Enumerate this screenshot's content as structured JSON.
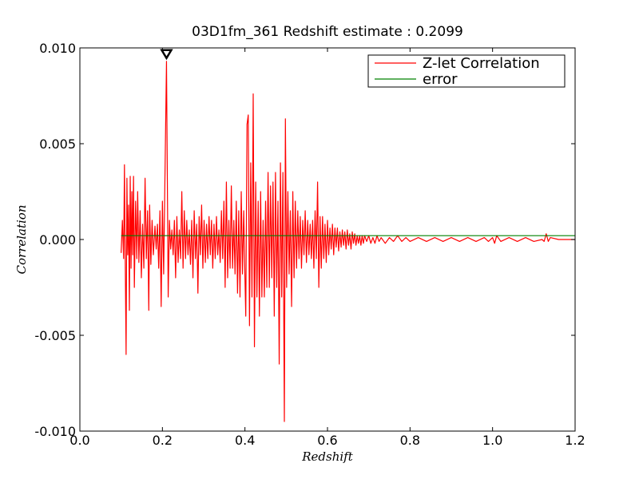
{
  "chart_data": {
    "type": "line",
    "title": "03D1fm_361 Redshift estimate : 0.2099",
    "xlabel": "Redshift",
    "ylabel": "Correlation",
    "xlim": [
      0.0,
      1.2
    ],
    "ylim": [
      -0.01,
      0.01
    ],
    "x_ticks": [
      0.0,
      0.2,
      0.4,
      0.6,
      0.8,
      1.0,
      1.2
    ],
    "x_tick_labels": [
      "0.0",
      "0.2",
      "0.4",
      "0.6",
      "0.8",
      "1.0",
      "1.2"
    ],
    "y_ticks": [
      0.01,
      0.005,
      0.0,
      -0.005,
      -0.01
    ],
    "y_tick_labels": [
      "0.010",
      "0.005",
      "0.000",
      "-0.005",
      "-0.010"
    ],
    "grid": false,
    "legend_position": "top-right",
    "marker": {
      "x": 0.2099,
      "y": 0.0093,
      "shape": "down-triangle"
    },
    "series": [
      {
        "name": "Z-let Correlation",
        "color": "#ff0000",
        "points": [
          [
            0.1,
            -0.0007
          ],
          [
            0.103,
            0.001
          ],
          [
            0.106,
            -0.001
          ],
          [
            0.108,
            0.0039
          ],
          [
            0.11,
            -0.0012
          ],
          [
            0.112,
            -0.006
          ],
          [
            0.114,
            0.0032
          ],
          [
            0.116,
            -0.0008
          ],
          [
            0.118,
            0.0018
          ],
          [
            0.12,
            -0.0037
          ],
          [
            0.122,
            0.0033
          ],
          [
            0.124,
            -0.0015
          ],
          [
            0.126,
            0.0025
          ],
          [
            0.128,
            -0.0008
          ],
          [
            0.13,
            0.0033
          ],
          [
            0.132,
            -0.0025
          ],
          [
            0.135,
            0.002
          ],
          [
            0.138,
            -0.001
          ],
          [
            0.14,
            0.0025
          ],
          [
            0.143,
            -0.0012
          ],
          [
            0.146,
            0.0015
          ],
          [
            0.149,
            -0.002
          ],
          [
            0.152,
            0.0008
          ],
          [
            0.155,
            -0.0015
          ],
          [
            0.158,
            0.0032
          ],
          [
            0.161,
            -0.001
          ],
          [
            0.164,
            0.0015
          ],
          [
            0.167,
            -0.0037
          ],
          [
            0.169,
            0.0018
          ],
          [
            0.172,
            -0.0013
          ],
          [
            0.175,
            0.001
          ],
          [
            0.178,
            -0.0008
          ],
          [
            0.182,
            0.0007
          ],
          [
            0.185,
            -0.0005
          ],
          [
            0.188,
            0.0008
          ],
          [
            0.191,
            -0.0015
          ],
          [
            0.194,
            0.0015
          ],
          [
            0.197,
            -0.0035
          ],
          [
            0.2,
            0.002
          ],
          [
            0.203,
            -0.0018
          ],
          [
            0.206,
            0.003
          ],
          [
            0.2099,
            0.0093
          ],
          [
            0.212,
            0.003
          ],
          [
            0.214,
            -0.003
          ],
          [
            0.217,
            0.001
          ],
          [
            0.22,
            -0.0005
          ],
          [
            0.223,
            0.0005
          ],
          [
            0.226,
            -0.0008
          ],
          [
            0.229,
            0.001
          ],
          [
            0.232,
            -0.002
          ],
          [
            0.235,
            0.0012
          ],
          [
            0.238,
            -0.0012
          ],
          [
            0.241,
            0.0005
          ],
          [
            0.244,
            -0.001
          ],
          [
            0.247,
            0.0025
          ],
          [
            0.25,
            -0.0015
          ],
          [
            0.253,
            0.0015
          ],
          [
            0.256,
            -0.001
          ],
          [
            0.259,
            0.001
          ],
          [
            0.262,
            -0.0008
          ],
          [
            0.265,
            0.0005
          ],
          [
            0.268,
            -0.0013
          ],
          [
            0.271,
            0.001
          ],
          [
            0.274,
            -0.002
          ],
          [
            0.277,
            0.0015
          ],
          [
            0.28,
            -0.001
          ],
          [
            0.283,
            0.0008
          ],
          [
            0.286,
            -0.0028
          ],
          [
            0.289,
            0.0012
          ],
          [
            0.292,
            -0.0008
          ],
          [
            0.295,
            0.0018
          ],
          [
            0.298,
            -0.0015
          ],
          [
            0.301,
            0.001
          ],
          [
            0.304,
            -0.0012
          ],
          [
            0.307,
            0.0008
          ],
          [
            0.31,
            -0.001
          ],
          [
            0.313,
            0.0012
          ],
          [
            0.316,
            -0.0008
          ],
          [
            0.319,
            0.001
          ],
          [
            0.322,
            -0.0015
          ],
          [
            0.325,
            0.0008
          ],
          [
            0.328,
            -0.001
          ],
          [
            0.331,
            0.0012
          ],
          [
            0.334,
            -0.0008
          ],
          [
            0.337,
            0.0005
          ],
          [
            0.34,
            -0.0012
          ],
          [
            0.343,
            0.0015
          ],
          [
            0.346,
            -0.001
          ],
          [
            0.349,
            0.002
          ],
          [
            0.352,
            -0.0025
          ],
          [
            0.355,
            0.003
          ],
          [
            0.358,
            -0.002
          ],
          [
            0.361,
            0.001
          ],
          [
            0.364,
            -0.0015
          ],
          [
            0.367,
            0.0028
          ],
          [
            0.37,
            -0.0015
          ],
          [
            0.373,
            0.001
          ],
          [
            0.376,
            -0.0018
          ],
          [
            0.379,
            0.002
          ],
          [
            0.382,
            -0.0028
          ],
          [
            0.385,
            0.0015
          ],
          [
            0.388,
            -0.003
          ],
          [
            0.391,
            0.0025
          ],
          [
            0.394,
            -0.0018
          ],
          [
            0.397,
            0.0015
          ],
          [
            0.4,
            -0.002
          ],
          [
            0.402,
            -0.004
          ],
          [
            0.405,
            0.006
          ],
          [
            0.408,
            0.0065
          ],
          [
            0.411,
            -0.0045
          ],
          [
            0.414,
            0.004
          ],
          [
            0.417,
            -0.003
          ],
          [
            0.42,
            0.0076
          ],
          [
            0.423,
            -0.0056
          ],
          [
            0.426,
            0.003
          ],
          [
            0.429,
            -0.003
          ],
          [
            0.432,
            0.002
          ],
          [
            0.435,
            -0.004
          ],
          [
            0.438,
            0.0025
          ],
          [
            0.441,
            -0.003
          ],
          [
            0.444,
            0.001
          ],
          [
            0.447,
            -0.003
          ],
          [
            0.45,
            0.002
          ],
          [
            0.453,
            -0.0025
          ],
          [
            0.456,
            0.0035
          ],
          [
            0.459,
            -0.0025
          ],
          [
            0.462,
            0.0028
          ],
          [
            0.465,
            -0.002
          ],
          [
            0.468,
            0.003
          ],
          [
            0.471,
            -0.004
          ],
          [
            0.474,
            0.0035
          ],
          [
            0.477,
            -0.0025
          ],
          [
            0.48,
            0.002
          ],
          [
            0.483,
            -0.0065
          ],
          [
            0.486,
            0.004
          ],
          [
            0.489,
            -0.003
          ],
          [
            0.492,
            0.0035
          ],
          [
            0.4955,
            -0.0095
          ],
          [
            0.498,
            0.0063
          ],
          [
            0.501,
            -0.0025
          ],
          [
            0.504,
            0.0025
          ],
          [
            0.507,
            -0.0018
          ],
          [
            0.51,
            0.0015
          ],
          [
            0.513,
            -0.0035
          ],
          [
            0.516,
            0.0025
          ],
          [
            0.519,
            -0.002
          ],
          [
            0.522,
            0.002
          ],
          [
            0.525,
            -0.0015
          ],
          [
            0.528,
            0.0015
          ],
          [
            0.531,
            -0.001
          ],
          [
            0.534,
            0.0012
          ],
          [
            0.537,
            -0.0015
          ],
          [
            0.54,
            0.001
          ],
          [
            0.543,
            -0.0008
          ],
          [
            0.546,
            0.0015
          ],
          [
            0.549,
            -0.0012
          ],
          [
            0.552,
            0.001
          ],
          [
            0.555,
            -0.0008
          ],
          [
            0.558,
            0.0008
          ],
          [
            0.561,
            -0.001
          ],
          [
            0.564,
            0.001
          ],
          [
            0.567,
            -0.0015
          ],
          [
            0.57,
            0.0015
          ],
          [
            0.573,
            -0.001
          ],
          [
            0.576,
            0.003
          ],
          [
            0.579,
            -0.0025
          ],
          [
            0.582,
            0.0012
          ],
          [
            0.585,
            -0.0015
          ],
          [
            0.588,
            0.0012
          ],
          [
            0.591,
            -0.001
          ],
          [
            0.594,
            0.0008
          ],
          [
            0.597,
            -0.0012
          ],
          [
            0.6,
            0.001
          ],
          [
            0.603,
            -0.0008
          ],
          [
            0.606,
            0.0006
          ],
          [
            0.609,
            -0.0005
          ],
          [
            0.612,
            0.0008
          ],
          [
            0.615,
            -0.0008
          ],
          [
            0.618,
            0.0006
          ],
          [
            0.621,
            -0.0004
          ],
          [
            0.624,
            0.0006
          ],
          [
            0.627,
            -0.0006
          ],
          [
            0.63,
            0.0004
          ],
          [
            0.633,
            -0.0004
          ],
          [
            0.636,
            0.0005
          ],
          [
            0.639,
            -0.0003
          ],
          [
            0.642,
            0.0004
          ],
          [
            0.645,
            -0.0005
          ],
          [
            0.648,
            0.0005
          ],
          [
            0.651,
            -0.0003
          ],
          [
            0.654,
            0.0003
          ],
          [
            0.657,
            -0.0005
          ],
          [
            0.66,
            0.0004
          ],
          [
            0.663,
            -0.0002
          ],
          [
            0.666,
            0.0003
          ],
          [
            0.669,
            -0.0003
          ],
          [
            0.672,
            0.0002
          ],
          [
            0.675,
            -0.0002
          ],
          [
            0.678,
            0.0002
          ],
          [
            0.681,
            -0.0003
          ],
          [
            0.684,
            0.0002
          ],
          [
            0.687,
            -0.0002
          ],
          [
            0.69,
            0.0002
          ],
          [
            0.695,
            -0.0001
          ],
          [
            0.7,
            0.0002
          ],
          [
            0.705,
            -0.0002
          ],
          [
            0.71,
            0.0001
          ],
          [
            0.715,
            -0.0002
          ],
          [
            0.72,
            0.0002
          ],
          [
            0.725,
            -0.0001
          ],
          [
            0.73,
            0.0001
          ],
          [
            0.74,
            -0.0002
          ],
          [
            0.75,
            0.0001
          ],
          [
            0.76,
            -0.0001
          ],
          [
            0.77,
            0.0002
          ],
          [
            0.78,
            -0.0001
          ],
          [
            0.79,
            0.0001
          ],
          [
            0.8,
            -0.0001
          ],
          [
            0.82,
            0.0001
          ],
          [
            0.84,
            -0.0001
          ],
          [
            0.86,
            0.0001
          ],
          [
            0.88,
            -0.0001
          ],
          [
            0.9,
            0.0001
          ],
          [
            0.92,
            -0.0001
          ],
          [
            0.94,
            0.0001
          ],
          [
            0.96,
            -0.0001
          ],
          [
            0.98,
            0.0001
          ],
          [
            0.99,
            -0.0001
          ],
          [
            1.0,
            0.0001
          ],
          [
            1.005,
            -0.0002
          ],
          [
            1.01,
            0.0002
          ],
          [
            1.02,
            -0.0001
          ],
          [
            1.04,
            0.0001
          ],
          [
            1.06,
            -0.0001
          ],
          [
            1.08,
            0.0001
          ],
          [
            1.1,
            -0.0001
          ],
          [
            1.12,
            0.0
          ],
          [
            1.125,
            -0.0001
          ],
          [
            1.13,
            0.0003
          ],
          [
            1.135,
            -0.0001
          ],
          [
            1.14,
            0.0001
          ],
          [
            1.16,
            0.0
          ],
          [
            1.18,
            0.0
          ],
          [
            1.2,
            0.0
          ]
        ]
      },
      {
        "name": "error",
        "color": "#008000",
        "points": [
          [
            0.1,
            0.0002
          ],
          [
            1.2,
            0.0002
          ]
        ]
      }
    ]
  }
}
